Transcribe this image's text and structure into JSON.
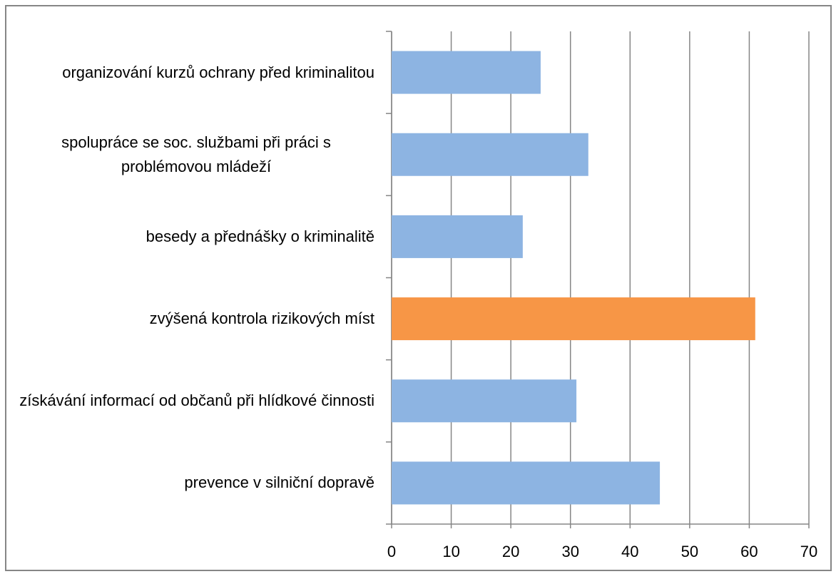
{
  "chart_data": {
    "type": "hbar",
    "categories": [
      "organizování kurzů ochrany před kriminalitou",
      "spolupráce se soc. službami při práci s problémovou mládeží",
      "besedy a přednášky  o kriminalitě",
      "zvýšená kontrola rizikových míst",
      "získávání informací od občanů při hlídkové činnosti",
      "prevence v silniční dopravě"
    ],
    "values": [
      25,
      33,
      22,
      61,
      31,
      45
    ],
    "colors": [
      "#8db4e2",
      "#8db4e2",
      "#8db4e2",
      "#f79646",
      "#8db4e2",
      "#8db4e2"
    ],
    "xlim": [
      0,
      70
    ],
    "xticks": [
      0,
      10,
      20,
      30,
      40,
      50,
      60,
      70
    ],
    "grid": true
  }
}
